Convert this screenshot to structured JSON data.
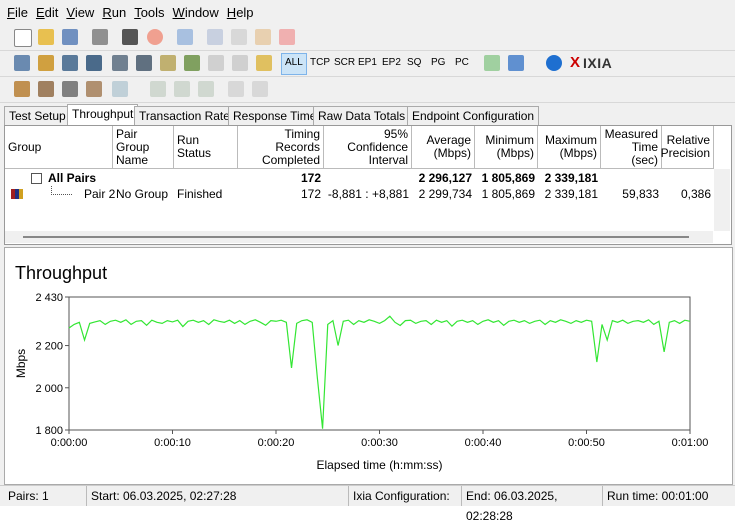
{
  "menu": [
    "File",
    "Edit",
    "View",
    "Run",
    "Tools",
    "Window",
    "Help"
  ],
  "toolbar_labels": [
    "ALL",
    "TCP",
    "SCR",
    "EP1",
    "EP2",
    "SQ",
    "PG",
    "PC"
  ],
  "logo": "IXIA",
  "tabs": [
    "Test Setup",
    "Throughput",
    "Transaction Rate",
    "Response Time",
    "Raw Data Totals",
    "Endpoint Configuration"
  ],
  "table": {
    "columns": [
      "Group",
      "Pair Group\nName",
      "Run Status",
      "Timing Records\nCompleted",
      "95% Confidence\nInterval",
      "Average\n(Mbps)",
      "Minimum\n(Mbps)",
      "Maximum\n(Mbps)",
      "Measured\nTime (sec)",
      "Relative\nPrecision"
    ],
    "rows": [
      [
        "All Pairs",
        null,
        null,
        "172",
        null,
        "2 296,127",
        "1 805,869",
        "2 339,181",
        null,
        null
      ],
      [
        "Pair 2",
        "No Group",
        "Finished",
        "172",
        "-8,881 : +8,881",
        "2 299,734",
        "1 805,869",
        "2 339,181",
        "59,833",
        "0,386"
      ]
    ]
  },
  "chart_data": {
    "type": "line",
    "title": "Throughput",
    "y_label": "Mbps",
    "x_label": "Elapsed time (h:mm:ss)",
    "color": "#33e633",
    "x": [
      0,
      0.5,
      1,
      1.5,
      2,
      2.5,
      3,
      3.5,
      4,
      4.5,
      5,
      5.5,
      6,
      6.5,
      7,
      7.5,
      8,
      8.5,
      9,
      9.5,
      10,
      10.5,
      11,
      11.5,
      12,
      12.5,
      13,
      13.5,
      14,
      14.5,
      15,
      15.5,
      16,
      16.5,
      17,
      17.5,
      18,
      18.5,
      19,
      19.5,
      20,
      20.5,
      21,
      21.5,
      22,
      22.5,
      23,
      23.5,
      24,
      24.5,
      25,
      25.5,
      26,
      26.5,
      27,
      27.5,
      28,
      28.5,
      29,
      29.5,
      30,
      30.5,
      31,
      31.5,
      32,
      32.5,
      33,
      33.5,
      34,
      34.5,
      35,
      35.5,
      36,
      36.5,
      37,
      37.5,
      38,
      38.5,
      39,
      39.5,
      40,
      40.5,
      41,
      41.5,
      42,
      42.5,
      43,
      43.5,
      44,
      44.5,
      45,
      45.5,
      46,
      46.5,
      47,
      47.5,
      48,
      48.5,
      49,
      49.5,
      50,
      50.5,
      51,
      51.5,
      52,
      52.5,
      53,
      53.5,
      54,
      54.5,
      55,
      55.5,
      56,
      56.5,
      57,
      57.5,
      58,
      58.5,
      59,
      59.5,
      60
    ],
    "values": [
      2283,
      2300,
      2310,
      2226,
      2305,
      2312,
      2318,
      2300,
      2315,
      2320,
      2310,
      2322,
      2300,
      2315,
      2318,
      2296,
      2320,
      2310,
      2305,
      2318,
      2312,
      2320,
      2290,
      2315,
      2320,
      2310,
      2318,
      2300,
      2322,
      2315,
      2310,
      2320,
      2305,
      2318,
      2300,
      2315,
      2322,
      2310,
      2296,
      2318,
      2315,
      2320,
      2310,
      2094,
      2305,
      2318,
      2322,
      2310,
      2045,
      1806,
      2300,
      2318,
      2200,
      2315,
      2320,
      2300,
      2318,
      2310,
      2322,
      2315,
      2305,
      2318,
      2339,
      2310,
      2295,
      2318,
      2320,
      2305,
      2315,
      2318,
      2300,
      2320,
      2310,
      2318,
      2292,
      2315,
      2320,
      2310,
      2318,
      2300,
      2315,
      2322,
      2310,
      2318,
      2296,
      2315,
      2320,
      2310,
      2318,
      2305,
      2315,
      2320,
      2300,
      2318,
      2310,
      2322,
      2315,
      2305,
      2318,
      2310,
      2320,
      2315,
      2122,
      2300,
      2226,
      2318,
      2310,
      2320,
      2305,
      2315,
      2318,
      2310,
      2322,
      2300,
      2315,
      2170,
      2310,
      2318,
      2305,
      2320,
      2315
    ],
    "xlim": [
      0,
      60
    ],
    "ylim": [
      1800,
      2430
    ],
    "xticks": [
      {
        "value": 0,
        "label": "0:00:00"
      },
      {
        "value": 10,
        "label": "0:00:10"
      },
      {
        "value": 20,
        "label": "0:00:20"
      },
      {
        "value": 30,
        "label": "0:00:30"
      },
      {
        "value": 40,
        "label": "0:00:40"
      },
      {
        "value": 50,
        "label": "0:00:50"
      },
      {
        "value": 60,
        "label": "0:01:00"
      }
    ],
    "yticks": [
      {
        "value": 1800,
        "label": "1 800"
      },
      {
        "value": 2000,
        "label": "2 000"
      },
      {
        "value": 2200,
        "label": "2 200"
      },
      {
        "value": 2430,
        "label": "2 430"
      }
    ]
  },
  "status_bar": [
    "Pairs: 1",
    "Start: 06.03.2025, 02:27:28",
    "Ixia Configuration:",
    "End: 06.03.2025, 02:28:28",
    "Run time: 00:01:00"
  ]
}
